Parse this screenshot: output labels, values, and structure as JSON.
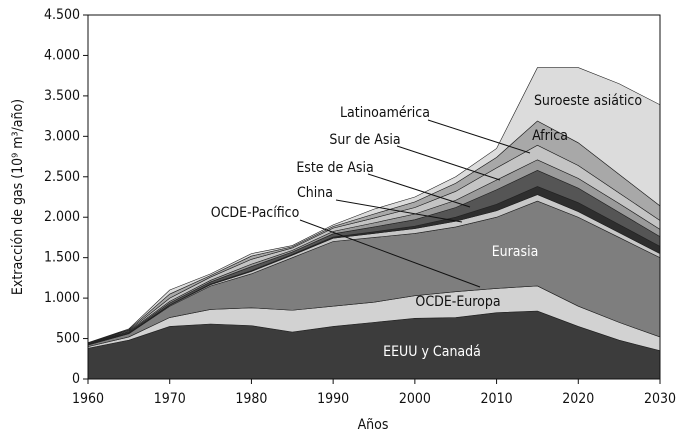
{
  "chart_data": {
    "type": "stacked_area",
    "xlabel": "Años",
    "ylabel": "Extracción de gas (10⁹ m³/año)",
    "x": [
      1960,
      1965,
      1970,
      1975,
      1980,
      1985,
      1990,
      1995,
      2000,
      2005,
      2010,
      2015,
      2020,
      2025,
      2030
    ],
    "xlim": [
      1960,
      2030
    ],
    "xticks": [
      1960,
      1970,
      1980,
      1990,
      2000,
      2010,
      2020,
      2030
    ],
    "ylim": [
      0,
      4500
    ],
    "yticks": [
      0,
      500,
      {
        "value": 1000,
        "label": "1.000"
      },
      {
        "value": 1500,
        "label": "1.500"
      },
      {
        "value": 2000,
        "label": "2.000"
      },
      {
        "value": 2500,
        "label": "2.500"
      },
      {
        "value": 3000,
        "label": "3.000"
      },
      {
        "value": 3500,
        "label": "3.500"
      },
      {
        "value": 4000,
        "label": "4.000"
      },
      {
        "value": 4500,
        "label": "4.500"
      }
    ],
    "series": [
      {
        "name": "EEUU y Canadá",
        "color": "#3c3c3c",
        "values": [
          380,
          480,
          650,
          680,
          660,
          580,
          650,
          700,
          750,
          760,
          820,
          840,
          650,
          480,
          350
        ]
      },
      {
        "name": "OCDE-Europa",
        "color": "#d2d2d2",
        "values": [
          20,
          40,
          110,
          180,
          220,
          270,
          250,
          250,
          280,
          320,
          300,
          310,
          250,
          220,
          170
        ]
      },
      {
        "name": "Eurasia",
        "color": "#7e7e7e",
        "values": [
          20,
          40,
          140,
          290,
          420,
          650,
          800,
          800,
          770,
          800,
          880,
          1050,
          1100,
          1050,
          980
        ]
      },
      {
        "name": "OCDE-Pacífico",
        "color": "#c8c8c8",
        "values": [
          5,
          5,
          10,
          15,
          30,
          30,
          40,
          50,
          60,
          70,
          80,
          80,
          70,
          60,
          50
        ]
      },
      {
        "name": "China",
        "color": "#2e2e2e",
        "values": [
          5,
          5,
          5,
          10,
          10,
          10,
          15,
          20,
          30,
          50,
          80,
          100,
          110,
          100,
          90
        ]
      },
      {
        "name": "Este de Asia",
        "color": "#555555",
        "values": [
          5,
          10,
          25,
          25,
          50,
          30,
          40,
          60,
          80,
          120,
          180,
          200,
          180,
          150,
          120
        ]
      },
      {
        "name": "Sur de Asia",
        "color": "#9a9a9a",
        "values": [
          5,
          10,
          20,
          20,
          30,
          20,
          30,
          50,
          70,
          90,
          120,
          130,
          120,
          110,
          90
        ]
      },
      {
        "name": "Latinoamérica",
        "color": "#c4c4c4",
        "values": [
          5,
          10,
          40,
          40,
          60,
          30,
          40,
          60,
          80,
          110,
          150,
          180,
          160,
          130,
          110
        ]
      },
      {
        "name": "Africa",
        "color": "#a8a8a8",
        "values": [
          3,
          10,
          50,
          20,
          40,
          15,
          20,
          50,
          70,
          100,
          130,
          300,
          280,
          230,
          180
        ]
      },
      {
        "name": "Suroeste asiático",
        "color": "#dcdcdc",
        "values": [
          2,
          10,
          50,
          20,
          30,
          15,
          20,
          60,
          60,
          80,
          110,
          660,
          930,
          1120,
          1250
        ]
      }
    ]
  }
}
